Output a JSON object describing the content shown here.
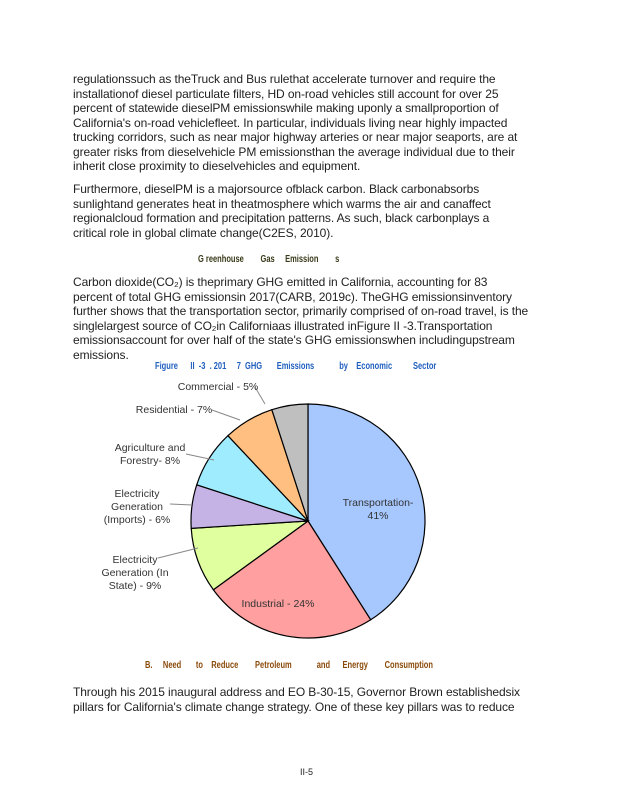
{
  "paragraphs": [
    {
      "lines": [
        "regulationssuch as theTruck and Bus rulethat accelerate turnover and require the",
        "installationof diesel particulate filters, HD on-road vehicles still account for over 25",
        "percent of statewide dieselPM  emissionswhile making uponly a smallproportion of",
        "California's on-road vehiclefleet.  In particular, individuals living near highly impacted",
        "trucking corridors, such as near major highway arteries or near major seaports, are at",
        "greater risks from dieselvehicle PM emissionsthan the average individual due to their",
        "inherit close proximity to dieselvehicles and equipment."
      ]
    },
    {
      "lines": [
        "Furthermore, dieselPM  is a majorsource ofblack  carbon.  Black carbonabsorbs",
        "sunlightand generates heat in theatmosphere which warms the air and canaffect",
        "regionalcloud formation and precipitation patterns.  As  such, black carbonplays a",
        "critical role in global climate change(C2ES,  2010)."
      ]
    },
    {
      "lines": [
        "Carbon dioxide(CO₂) is theprimary GHG emitted in California, accounting for 83",
        "percent of total GHG emissionsin 2017(CARB,  2019c).  TheGHG emissionsinventory",
        "further shows that the transportation sector, primarily comprised of on-road travel,  is the",
        "singlelargest source of CO₂in  Californiaas  illustrated inFigure II  -3.Transportation",
        "emissionsaccount for over half of the  state's GHG emissionswhen includingupstream",
        "emissions."
      ]
    },
    {
      "lines": [
        "Through his 2015 inaugural address and EO B-30-15, Governor Brown establishedsix",
        "pillars for California's climate change strategy.  One of these key pillars was to reduce"
      ]
    }
  ],
  "headings": {
    "ghg": "G reenhouse        Gas     Emission        s",
    "section_b": "B.     Need       to    Reduce        Petroleum            and      Energy        Consumption"
  },
  "figure_caption": "Figure      II  -3  . 201     7  GHG       Emissions            by    Economic          Sector",
  "page_number": "II-5",
  "chart_data": {
    "type": "pie",
    "title": "Figure II-3. 2017 GHG Emissions by Economic Sector",
    "start": "top",
    "direction": "clockwise",
    "slices": [
      {
        "label": "Transportation- 41%",
        "lines": [
          "Transportation-",
          "41%"
        ],
        "value": 41,
        "color": "#a6c8ff"
      },
      {
        "label": "Industrial - 24%",
        "lines": [
          "Industrial - 24%"
        ],
        "value": 24,
        "color": "#ff9f9f"
      },
      {
        "label": "Electricity Generation (In State) - 9%",
        "lines": [
          "Electricity",
          "Generation (In",
          "State) - 9%"
        ],
        "value": 9,
        "color": "#e0ff9f"
      },
      {
        "label": "Electricity Generation (Imports) - 6%",
        "lines": [
          "Electricity",
          "Generation",
          "(Imports) - 6%"
        ],
        "value": 6,
        "color": "#c6b3e6"
      },
      {
        "label": "Agriculture and Forestry- 8%",
        "lines": [
          "Agriculture and",
          "Forestry- 8%"
        ],
        "value": 8,
        "color": "#a0ecff"
      },
      {
        "label": "Residential - 7%",
        "lines": [
          "Residential - 7%"
        ],
        "value": 7,
        "color": "#ffbf80"
      },
      {
        "label": "Commercial - 5%",
        "lines": [
          "Commercial - 5%"
        ],
        "value": 5,
        "color": "#bfbfbf"
      }
    ]
  }
}
